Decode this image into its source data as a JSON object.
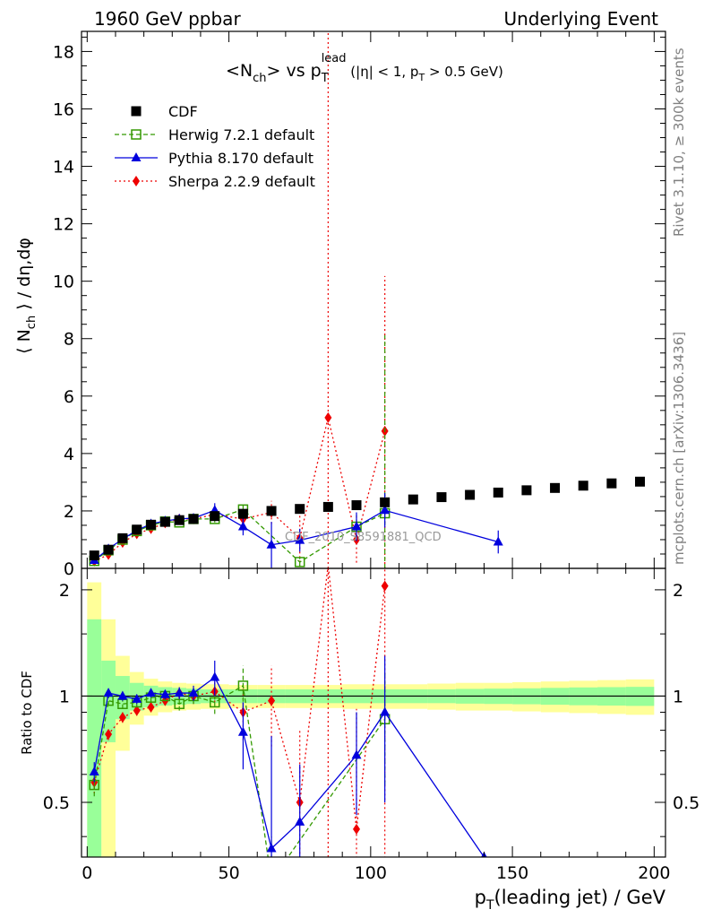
{
  "header": {
    "left": "1960 GeV ppbar",
    "right": "Underlying Event"
  },
  "side_labels": {
    "top": "Rivet 3.1.10, ≥ 300k events",
    "bottom": "mcplots.cern.ch [arXiv:1306.3436]"
  },
  "watermark": "CDF_2010_S8591881_QCD",
  "main_plot": {
    "title": "<N_ch> vs p_T^lead (|η| < 1, p_T > 0.5 GeV)",
    "title_parts": {
      "a": "<N",
      "a_sub": "ch",
      "b": "> vs p",
      "b_sub": "T",
      "b_sup": "lead",
      "c": " (|η| < 1, p",
      "c_sub": "T",
      "d": " > 0.5 GeV)"
    },
    "ylabel": "⟨ N_ch ⟩ / dη,dφ",
    "ylabel_parts": {
      "a": "⟨ N",
      "sub": "ch",
      "b": " ⟩ / dη,dφ"
    }
  },
  "ratio_plot": {
    "ylabel": "Ratio to CDF"
  },
  "xlabel": "p_T(leading jet) / GeV",
  "xlabel_parts": {
    "a": "p",
    "sub": "T",
    "b": "(leading jet) / GeV"
  },
  "colors": {
    "cdf": "#000000",
    "herwig": "#339900",
    "pythia": "#0000dd",
    "sherpa": "#ee0000",
    "band_inner": "#99ff99",
    "band_outer": "#ffff99"
  },
  "chart_data": [
    {
      "type": "scatter",
      "panel": "main",
      "xlim": [
        -2,
        204
      ],
      "ylim": [
        0,
        18.7
      ],
      "yticks": [
        0,
        2,
        4,
        6,
        8,
        10,
        12,
        14,
        16,
        18
      ],
      "xticks": [
        0,
        50,
        100,
        150,
        200
      ],
      "legend_position": "top-left",
      "series": [
        {
          "name": "CDF",
          "style": "markers",
          "x": [
            2.5,
            7.5,
            12.5,
            17.5,
            22.5,
            27.5,
            32.5,
            37.5,
            45,
            55,
            65,
            75,
            85,
            95,
            105,
            115,
            125,
            135,
            145,
            155,
            165,
            175,
            185,
            195
          ],
          "y": [
            0.45,
            0.65,
            1.05,
            1.35,
            1.52,
            1.62,
            1.68,
            1.72,
            1.82,
            1.9,
            2.0,
            2.07,
            2.14,
            2.2,
            2.3,
            2.4,
            2.48,
            2.56,
            2.64,
            2.72,
            2.8,
            2.88,
            2.96,
            3.02
          ]
        },
        {
          "name": "Herwig 7.2.1 default",
          "style": "dashed",
          "x": [
            2.5,
            7.5,
            12.5,
            17.5,
            22.5,
            27.5,
            32.5,
            37.5,
            45,
            55,
            75,
            95,
            105
          ],
          "y": [
            0.26,
            0.63,
            1.0,
            1.3,
            1.5,
            1.63,
            1.6,
            1.72,
            1.72,
            2.05,
            0.22,
            1.45,
            1.92
          ],
          "err": [
            0.04,
            0.05,
            0.06,
            0.06,
            0.06,
            0.06,
            0.07,
            0.08,
            0.12,
            0.25,
            0.15,
            0.4,
            6.2
          ]
        },
        {
          "name": "Pythia 8.170 default",
          "style": "solid",
          "x": [
            2.5,
            7.5,
            12.5,
            17.5,
            22.5,
            27.5,
            32.5,
            37.5,
            45,
            55,
            65,
            75,
            95,
            105,
            145
          ],
          "y": [
            0.28,
            0.68,
            1.02,
            1.32,
            1.55,
            1.65,
            1.72,
            1.75,
            2.02,
            1.45,
            0.82,
            0.98,
            1.45,
            2.02,
            0.92
          ],
          "err": [
            0.04,
            0.05,
            0.06,
            0.06,
            0.06,
            0.07,
            0.08,
            0.1,
            0.25,
            0.3,
            0.8,
            0.4,
            0.5,
            0.6,
            0.4
          ]
        },
        {
          "name": "Sherpa 2.2.9 default",
          "style": "dotted",
          "x": [
            2.5,
            7.5,
            12.5,
            17.5,
            22.5,
            27.5,
            32.5,
            37.5,
            45,
            55,
            65,
            75,
            85,
            95,
            105
          ],
          "y": [
            0.25,
            0.48,
            0.9,
            1.2,
            1.38,
            1.58,
            1.72,
            1.72,
            1.88,
            1.72,
            1.95,
            1.05,
            5.25,
            1.0,
            4.78
          ],
          "err": [
            0.04,
            0.05,
            0.06,
            0.06,
            0.06,
            0.07,
            0.08,
            0.1,
            0.12,
            0.3,
            0.4,
            1.0,
            17.0,
            0.8,
            5.4
          ]
        }
      ]
    },
    {
      "type": "line",
      "panel": "ratio",
      "ylabel": "Ratio to CDF",
      "xlim": [
        -2,
        204
      ],
      "ylim": [
        0.35,
        2.3
      ],
      "yscale": "log",
      "yticks": [
        0.5,
        1,
        2
      ],
      "xticks": [
        0,
        50,
        100,
        150,
        200
      ],
      "reference_line": 1,
      "series": [
        {
          "name": "Herwig 7.2.1 default",
          "style": "dashed",
          "x": [
            2.5,
            7.5,
            12.5,
            17.5,
            22.5,
            27.5,
            32.5,
            37.5,
            45,
            55,
            65,
            105
          ],
          "y": [
            0.56,
            0.97,
            0.95,
            0.96,
            0.99,
            1.0,
            0.95,
            1.0,
            0.96,
            1.07,
            0.3,
            0.86
          ],
          "err": [
            0.04,
            0.03,
            0.03,
            0.03,
            0.03,
            0.03,
            0.04,
            0.05,
            0.07,
            0.15,
            0.1,
            0.3
          ]
        },
        {
          "name": "Pythia 8.170 default",
          "style": "solid",
          "x": [
            2.5,
            7.5,
            12.5,
            17.5,
            22.5,
            27.5,
            32.5,
            37.5,
            45,
            55,
            65,
            75,
            95,
            105,
            140
          ],
          "y": [
            0.61,
            1.02,
            1.0,
            0.98,
            1.02,
            1.01,
            1.02,
            1.02,
            1.13,
            0.79,
            0.37,
            0.44,
            0.68,
            0.9,
            0.35
          ],
          "err": [
            0.04,
            0.03,
            0.03,
            0.03,
            0.03,
            0.03,
            0.04,
            0.05,
            0.13,
            0.17,
            0.4,
            0.2,
            0.22,
            0.4,
            0.0
          ]
        },
        {
          "name": "Sherpa 2.2.9 default",
          "style": "dotted",
          "x": [
            2.5,
            7.5,
            12.5,
            17.5,
            22.5,
            27.5,
            32.5,
            37.5,
            45,
            55,
            65,
            75,
            85,
            95,
            105
          ],
          "y": [
            0.57,
            0.78,
            0.87,
            0.91,
            0.93,
            0.97,
            1.02,
            1.0,
            1.03,
            0.9,
            0.97,
            0.5,
            2.35,
            0.42,
            2.05
          ],
          "err": [
            0.04,
            0.03,
            0.03,
            0.03,
            0.03,
            0.03,
            0.04,
            0.05,
            0.07,
            0.15,
            0.25,
            0.3,
            2.0,
            0.5,
            2.3
          ]
        }
      ],
      "bands": {
        "edges": [
          0,
          5,
          10,
          15,
          20,
          25,
          30,
          35,
          40,
          50,
          60,
          70,
          80,
          90,
          100,
          110,
          120,
          130,
          140,
          150,
          160,
          170,
          180,
          190,
          200
        ],
        "inner": [
          0.65,
          0.26,
          0.14,
          0.09,
          0.07,
          0.06,
          0.055,
          0.05,
          0.045,
          0.045,
          0.045,
          0.045,
          0.045,
          0.045,
          0.045,
          0.045,
          0.045,
          0.048,
          0.05,
          0.052,
          0.055,
          0.058,
          0.06,
          0.062
        ],
        "outer": [
          1.1,
          0.65,
          0.3,
          0.17,
          0.12,
          0.1,
          0.09,
          0.085,
          0.08,
          0.075,
          0.075,
          0.075,
          0.075,
          0.08,
          0.08,
          0.08,
          0.085,
          0.09,
          0.09,
          0.095,
          0.1,
          0.105,
          0.11,
          0.115
        ]
      }
    }
  ]
}
